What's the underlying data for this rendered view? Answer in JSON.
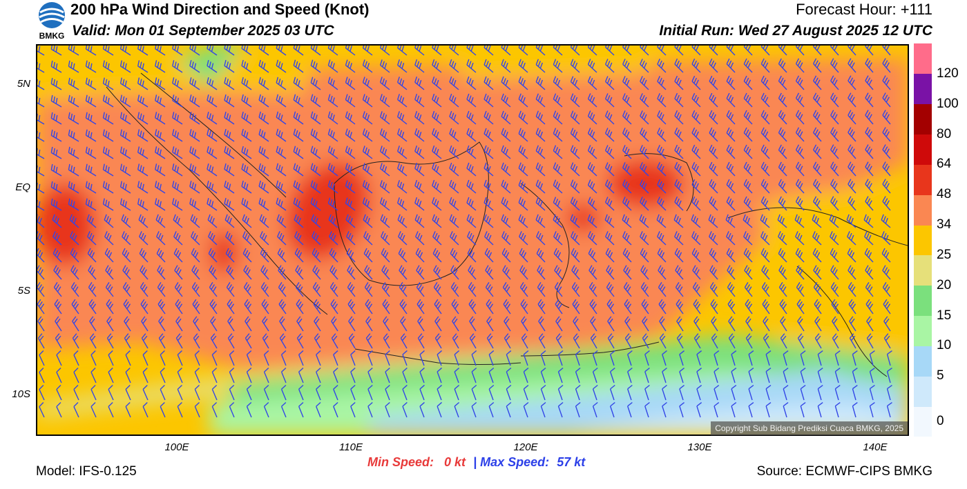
{
  "header": {
    "title": "200 hPa Wind Direction and Speed (Knot)",
    "valid": "Valid: Mon 01 September 2025 03 UTC",
    "forecast_hour": "Forecast Hour: +111",
    "initial_run": "Initial Run: Wed 27 August 2025 12 UTC",
    "logo_text": "BMKG"
  },
  "axes": {
    "lat_labels": [
      "5N",
      "EQ",
      "5S",
      "10S"
    ],
    "lon_labels": [
      "100E",
      "110E",
      "120E",
      "130E",
      "140E"
    ]
  },
  "colorbar": {
    "labels": [
      "0",
      "5",
      "10",
      "15",
      "20",
      "25",
      "34",
      "48",
      "64",
      "80",
      "100",
      "120"
    ],
    "colors": [
      "#f2f8fe",
      "#cfe9fb",
      "#a7d8f7",
      "#a9f5a4",
      "#7be07d",
      "#e6e07a",
      "#fcc600",
      "#fa8752",
      "#e8361c",
      "#cf0a0a",
      "#a30000",
      "#7a12a6",
      "#ff6c8a"
    ]
  },
  "footer": {
    "model": "Model: IFS-0.125",
    "min_speed_label": "Min Speed:",
    "min_speed_value": "0 kt",
    "separator": "|",
    "max_speed_label": "Max Speed:",
    "max_speed_value": "57 kt",
    "source": "Source: ECMWF-CIPS BMKG",
    "copyright": "Copyright Sub Bidang Prediksi Cuaca BMKG, 2025"
  },
  "colors": {
    "barb": "#3346e6"
  }
}
